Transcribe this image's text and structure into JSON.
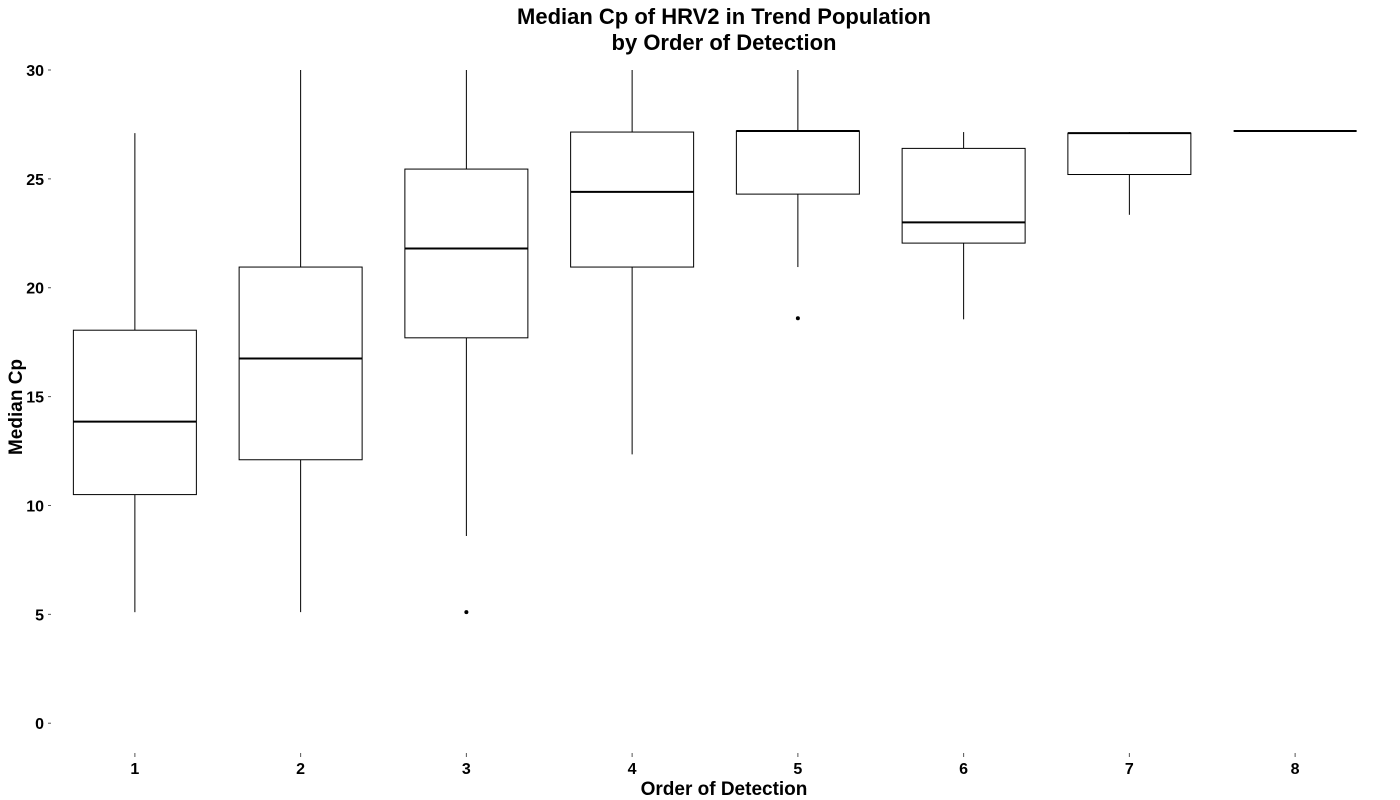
{
  "chart_data": {
    "type": "boxplot",
    "title_lines": [
      "Median Cp of HRV2 in Trend Population",
      "by Order of Detection"
    ],
    "xlabel": "Order of Detection",
    "ylabel": "Median Cp",
    "ylim": [
      -1.0,
      30
    ],
    "y_ticks": [
      0,
      5,
      10,
      15,
      20,
      25,
      30
    ],
    "categories": [
      "1",
      "2",
      "3",
      "4",
      "5",
      "6",
      "7",
      "8"
    ],
    "boxes": [
      {
        "category": "1",
        "whisker_low": 5.1,
        "q1": 10.5,
        "median": 13.85,
        "q3": 18.05,
        "whisker_high": 27.1,
        "outliers": []
      },
      {
        "category": "2",
        "whisker_low": 5.1,
        "q1": 12.1,
        "median": 16.75,
        "q3": 20.95,
        "whisker_high": 30.0,
        "outliers": []
      },
      {
        "category": "3",
        "whisker_low": 8.6,
        "q1": 17.7,
        "median": 21.8,
        "q3": 25.45,
        "whisker_high": 30.0,
        "outliers": [
          5.1
        ]
      },
      {
        "category": "4",
        "whisker_low": 12.35,
        "q1": 20.95,
        "median": 24.4,
        "q3": 27.15,
        "whisker_high": 30.0,
        "outliers": []
      },
      {
        "category": "5",
        "whisker_low": 20.95,
        "q1": 24.3,
        "median": 27.2,
        "q3": 27.2,
        "whisker_high": 30.0,
        "outliers": [
          18.6
        ]
      },
      {
        "category": "6",
        "whisker_low": 18.55,
        "q1": 22.05,
        "median": 23.0,
        "q3": 26.4,
        "whisker_high": 27.15,
        "outliers": []
      },
      {
        "category": "7",
        "whisker_low": 23.35,
        "q1": 25.2,
        "median": 27.1,
        "q3": 27.1,
        "whisker_high": 27.15,
        "outliers": []
      },
      {
        "category": "8",
        "whisker_low": 27.2,
        "q1": 27.2,
        "median": 27.2,
        "q3": 27.2,
        "whisker_high": 27.2,
        "outliers": []
      }
    ],
    "grid": false,
    "legend": "none",
    "colors": {
      "line": "#000000",
      "box_fill": "#ffffff",
      "text": "#000000",
      "background": "#ffffff"
    }
  }
}
